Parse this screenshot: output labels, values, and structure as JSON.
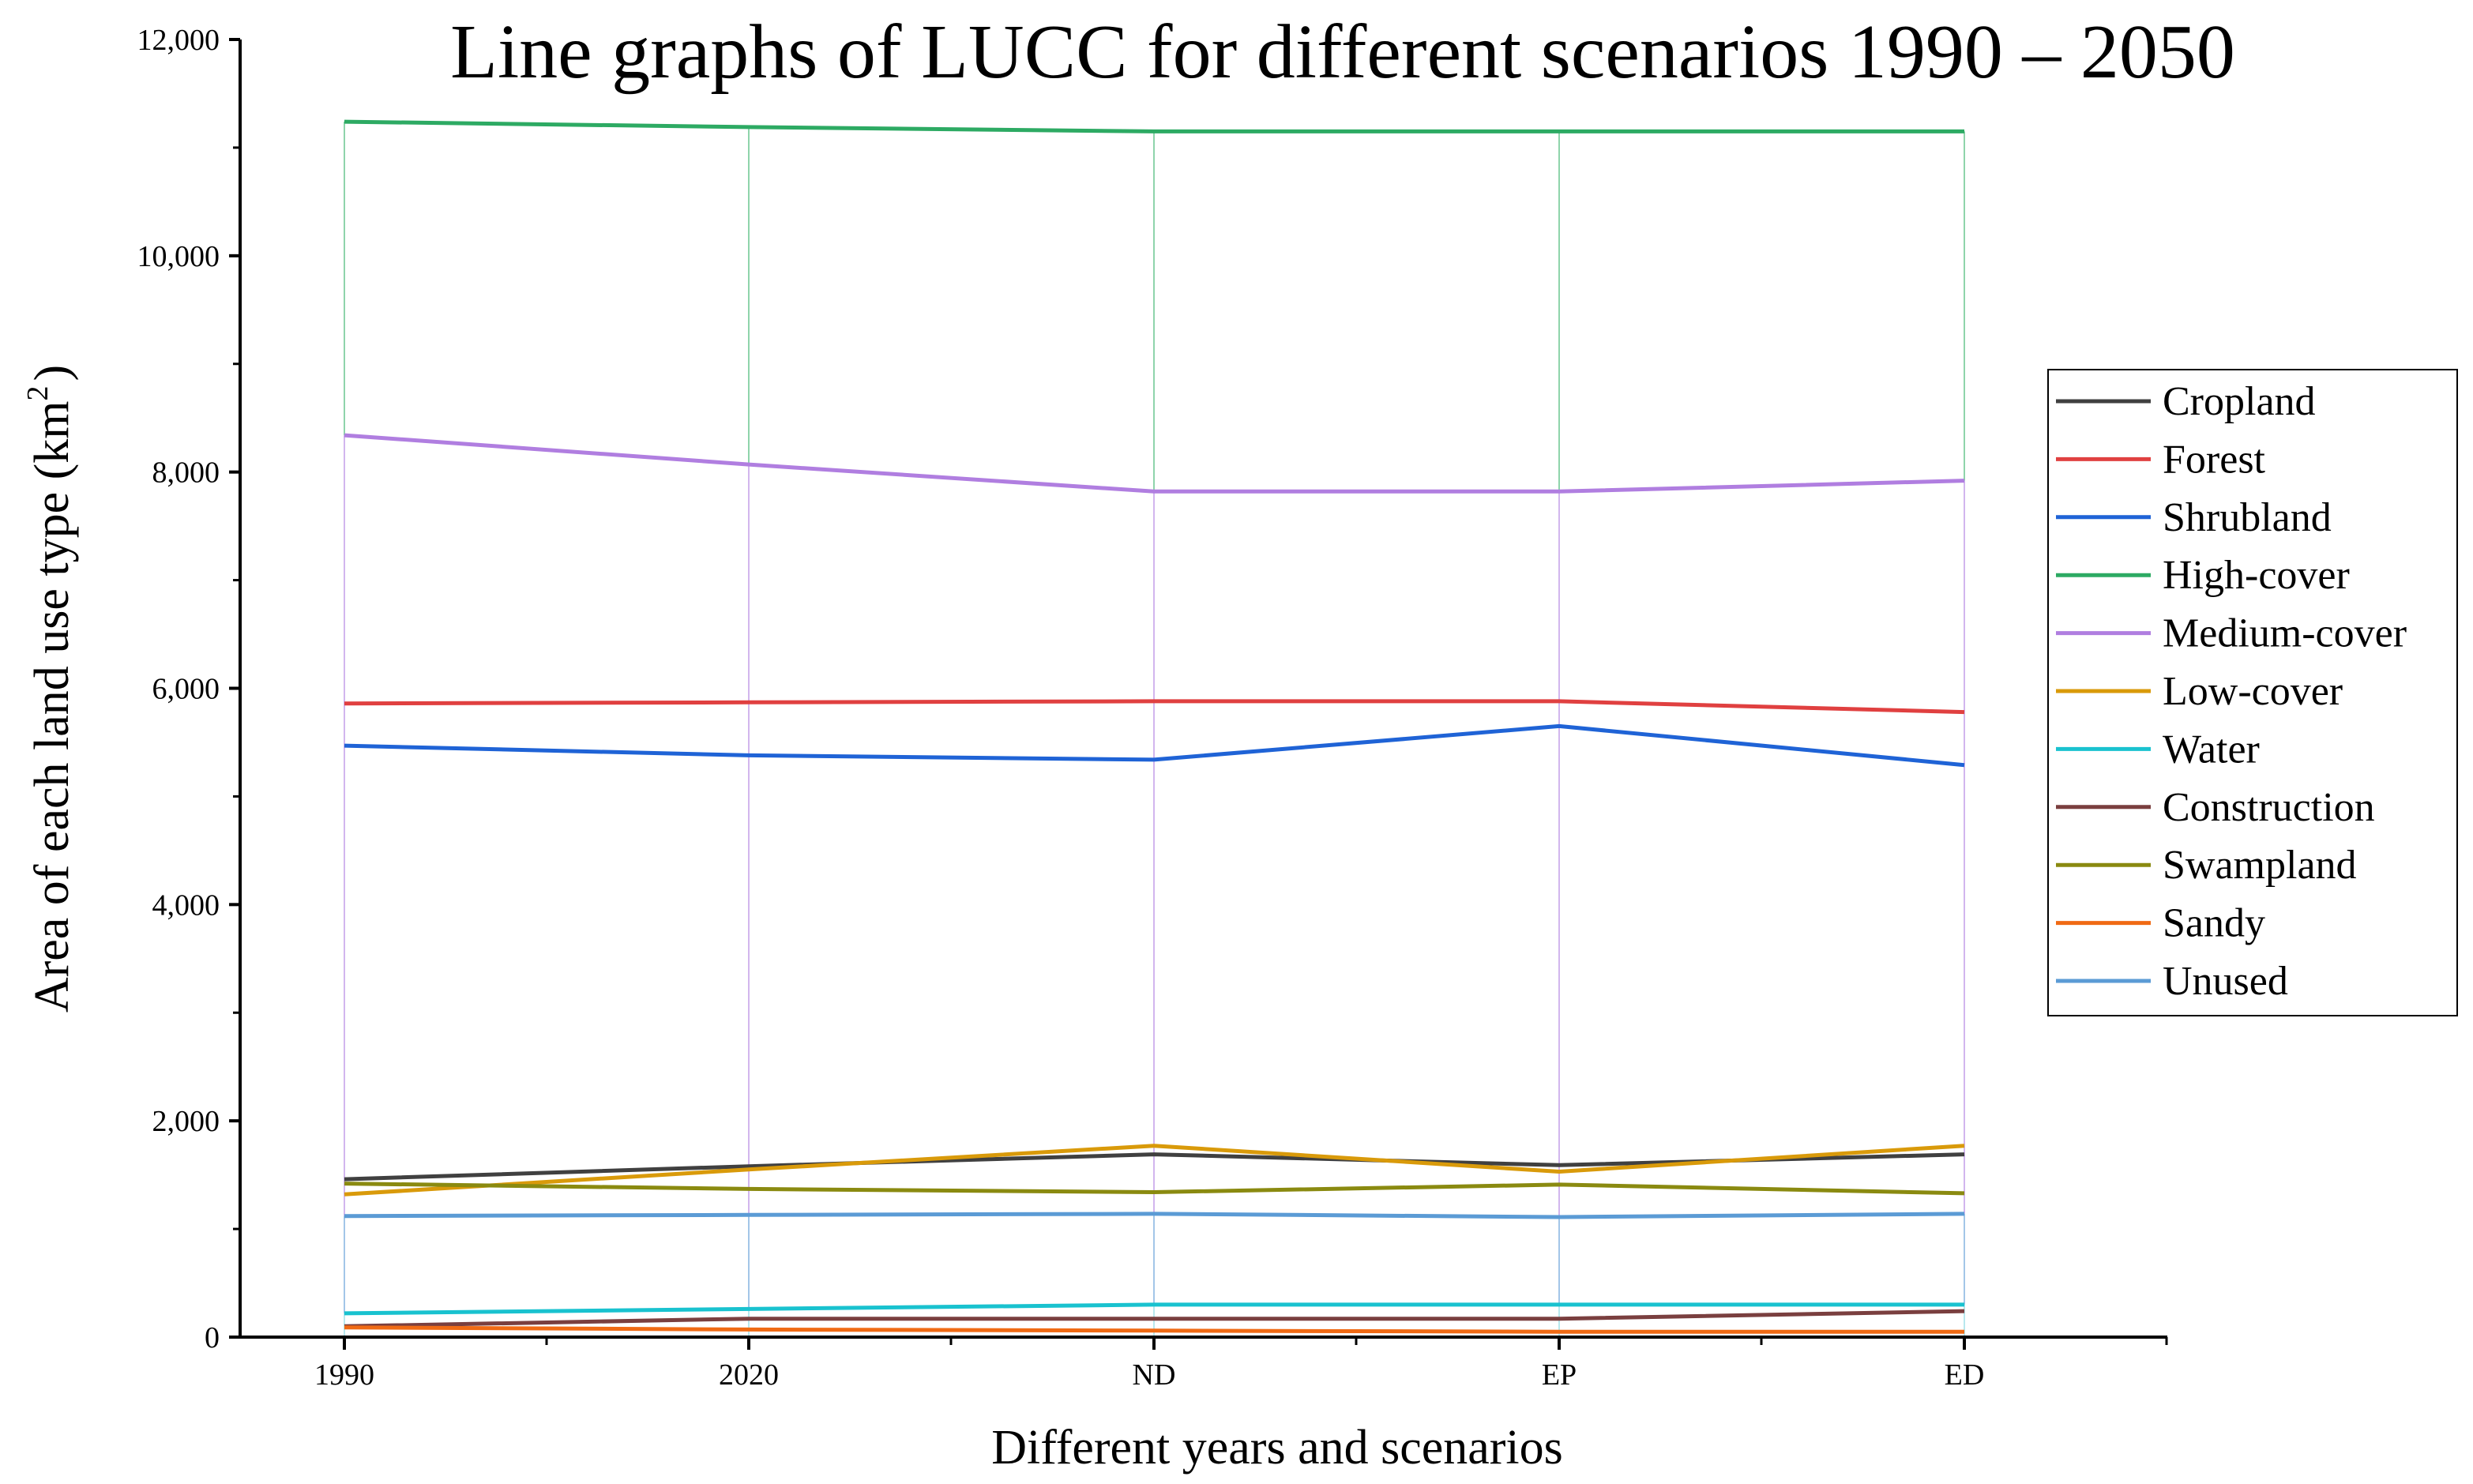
{
  "chart_data": {
    "type": "line",
    "title": "Line graphs of LUCC for different scenarios 1990 – 2050",
    "xlabel": "Different years and scenarios",
    "ylabel_main": "Area of each land use type (km",
    "ylabel_sup": "2",
    "ylabel_close": ")",
    "categories": [
      "1990",
      "2020",
      "ND",
      "EP",
      "ED"
    ],
    "ylim": [
      0,
      12000
    ],
    "yticks": [
      0,
      2000,
      4000,
      6000,
      8000,
      10000,
      12000
    ],
    "ytick_labels": [
      "0",
      "2,000",
      "4,000",
      "6,000",
      "8,000",
      "10,000",
      "12,000"
    ],
    "legend_position": "right",
    "series": [
      {
        "name": "Cropland",
        "color": "#404040",
        "values": [
          1460,
          1580,
          1690,
          1590,
          1690
        ]
      },
      {
        "name": "Forest",
        "color": "#e04040",
        "values": [
          5860,
          5870,
          5880,
          5880,
          5780
        ]
      },
      {
        "name": "Shrubland",
        "color": "#1f63d6",
        "values": [
          5470,
          5380,
          5340,
          5650,
          5290
        ]
      },
      {
        "name": "High-cover",
        "color": "#2daa63",
        "values": [
          11240,
          11190,
          11150,
          11150,
          11150
        ]
      },
      {
        "name": "Medium-cover",
        "color": "#b07ee0",
        "values": [
          8340,
          8070,
          7820,
          7820,
          7920
        ]
      },
      {
        "name": "Low-cover",
        "color": "#d99a0a",
        "values": [
          1320,
          1550,
          1770,
          1530,
          1770
        ]
      },
      {
        "name": "Water",
        "color": "#19c2cf",
        "values": [
          220,
          260,
          300,
          300,
          300
        ]
      },
      {
        "name": "Construction",
        "color": "#7a3f3f",
        "values": [
          100,
          170,
          170,
          170,
          240
        ]
      },
      {
        "name": "Swampland",
        "color": "#8a8a10",
        "values": [
          1420,
          1370,
          1340,
          1410,
          1330
        ]
      },
      {
        "name": "Sandy",
        "color": "#f06a14",
        "values": [
          90,
          70,
          60,
          50,
          50
        ]
      },
      {
        "name": "Unused",
        "color": "#5b9bd5",
        "values": [
          1120,
          1130,
          1140,
          1110,
          1140
        ]
      }
    ]
  }
}
